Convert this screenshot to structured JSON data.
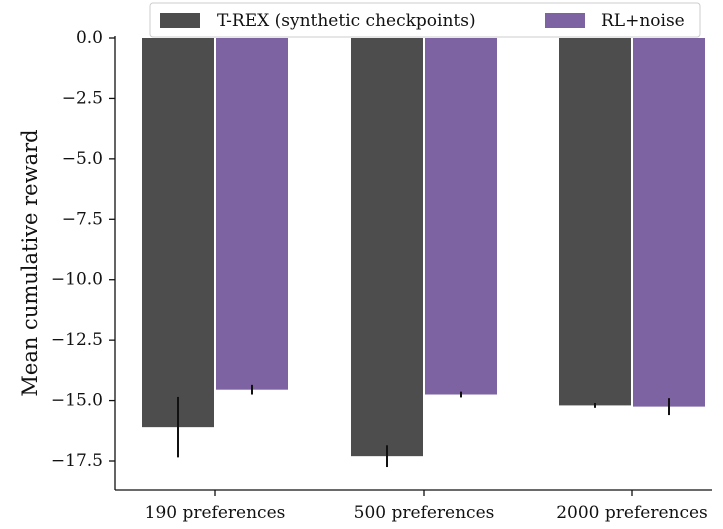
{
  "chart_data": {
    "type": "bar",
    "categories": [
      "190 preferences",
      "500 preferences",
      "2000 preferences"
    ],
    "series": [
      {
        "name": "T-REX (synthetic checkpoints)",
        "color": "#4d4d4d",
        "values": [
          -16.1,
          -17.3,
          -15.2
        ],
        "errors": [
          1.25,
          0.45,
          0.1
        ]
      },
      {
        "name": "RL+noise",
        "color": "#7e63a2",
        "values": [
          -14.55,
          -14.75,
          -15.25
        ],
        "errors": [
          0.2,
          0.12,
          0.35
        ]
      }
    ],
    "xlabel": "",
    "ylabel": "Mean cumulative reward",
    "ylim": [
      -18.7,
      0
    ],
    "yticks": [
      0.0,
      -2.5,
      -5.0,
      -7.5,
      -10.0,
      -12.5,
      -15.0,
      -17.5
    ],
    "ytick_labels": [
      "0.0",
      "−2.5",
      "−5.0",
      "−7.5",
      "−10.0",
      "−12.5",
      "−15.0",
      "−17.5"
    ],
    "grid": false,
    "legend_position": "top"
  }
}
